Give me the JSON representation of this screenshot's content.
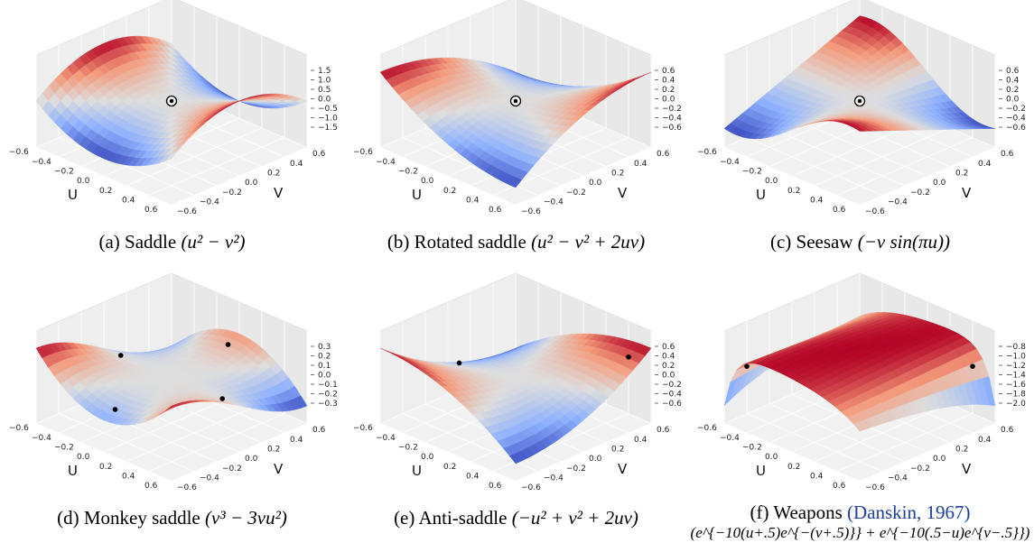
{
  "figure": {
    "panels": [
      {
        "id": "a",
        "caption_label": "(a) Saddle",
        "caption_formula": "(u² − v²)",
        "caption_cite": "",
        "caption_line2": "",
        "fn": "saddle",
        "critical_points": [
          [
            0,
            0
          ]
        ],
        "marker": "target",
        "zticks": [
          "1.5",
          "1.0",
          "0.5",
          "0.0",
          "−0.5",
          "−1.0",
          "−1.5"
        ]
      },
      {
        "id": "b",
        "caption_label": "(b) Rotated saddle",
        "caption_formula": "(u² − v² + 2uv)",
        "caption_cite": "",
        "caption_line2": "",
        "fn": "rotated",
        "critical_points": [
          [
            0,
            0
          ]
        ],
        "marker": "target",
        "zticks": [
          "0.6",
          "0.4",
          "0.2",
          "0.0",
          "−0.2",
          "−0.4",
          "−0.6"
        ]
      },
      {
        "id": "c",
        "caption_label": "(c) Seesaw",
        "caption_formula": "(−v sin(πu))",
        "caption_cite": "",
        "caption_line2": "",
        "fn": "seesaw",
        "critical_points": [
          [
            0,
            0
          ]
        ],
        "marker": "target",
        "zticks": [
          "0.6",
          "0.4",
          "0.2",
          "0.0",
          "−0.2",
          "−0.4",
          "−0.6"
        ]
      },
      {
        "id": "d",
        "caption_label": "(d) Monkey saddle",
        "caption_formula": "(v³ − 3vu²)",
        "caption_cite": "",
        "caption_line2": "",
        "fn": "monkey",
        "critical_points": [
          [
            -0.45,
            0
          ],
          [
            0.45,
            0
          ],
          [
            0,
            0.5
          ],
          [
            0,
            -0.5
          ]
        ],
        "marker": "dot",
        "zticks": [
          "0.3",
          "0.2",
          "0.1",
          "0.0",
          "−0.1",
          "−0.2",
          "−0.3"
        ]
      },
      {
        "id": "e",
        "caption_label": "(e) Anti-saddle",
        "caption_formula": "(−u² + v² + 2uv)",
        "caption_cite": "",
        "caption_line2": "",
        "fn": "anti",
        "critical_points": [
          [
            -0.5,
            0
          ],
          [
            0.5,
            0.5
          ]
        ],
        "marker": "dot",
        "zticks": [
          "0.6",
          "0.4",
          "0.2",
          "0.0",
          "−0.2",
          "−0.4",
          "−0.6"
        ]
      },
      {
        "id": "f",
        "caption_label": "(f) Weapons",
        "caption_formula": "",
        "caption_cite": "(Danskin, 1967)",
        "caption_line2": "(e^{−10(u+.5)e^{−(v+.5)}} + e^{−10(.5−u)e^{v−.5}})",
        "fn": "weapons",
        "critical_points": [
          [
            -0.5,
            -0.5
          ],
          [
            0.5,
            0.5
          ]
        ],
        "marker": "dot",
        "zticks": [
          "−0.8",
          "−1.0",
          "−1.2",
          "−1.4",
          "−1.6",
          "−1.8",
          "−2.0"
        ]
      }
    ],
    "axis_labels": {
      "u": "U",
      "v": "V"
    },
    "u_ticks": [
      "−0.6",
      "−0.4",
      "−0.2",
      "0.0",
      "0.2",
      "0.4",
      "0.6"
    ],
    "v_ticks": [
      "0.6",
      "0.4",
      "0.2",
      "0.0",
      "−0.2",
      "−0.4",
      "−0.6"
    ],
    "domain": [
      -0.6,
      0.6
    ],
    "colormap": "coolwarm",
    "colors": {
      "low": "#3b4cc0",
      "mid": "#dddddd",
      "high": "#b40426",
      "cite": "#1a3fa0"
    }
  },
  "chart_data": [
    {
      "type": "surface",
      "title": "(a) Saddle (u² − v²)",
      "xlabel": "U",
      "ylabel": "V",
      "xlim": [
        -0.6,
        0.6
      ],
      "ylim": [
        -0.6,
        0.6
      ],
      "zlim": [
        -1.5,
        1.5
      ],
      "grid": true
    },
    {
      "type": "surface",
      "title": "(b) Rotated saddle (u² − v² + 2uv)",
      "xlabel": "U",
      "ylabel": "V",
      "xlim": [
        -0.6,
        0.6
      ],
      "ylim": [
        -0.6,
        0.6
      ],
      "zlim": [
        -0.6,
        0.6
      ],
      "grid": true
    },
    {
      "type": "surface",
      "title": "(c) Seesaw (−v sin(πu))",
      "xlabel": "U",
      "ylabel": "V",
      "xlim": [
        -0.6,
        0.6
      ],
      "ylim": [
        -0.6,
        0.6
      ],
      "zlim": [
        -0.6,
        0.6
      ],
      "grid": true
    },
    {
      "type": "surface",
      "title": "(d) Monkey saddle (v³ − 3vu²)",
      "xlabel": "U",
      "ylabel": "V",
      "xlim": [
        -0.6,
        0.6
      ],
      "ylim": [
        -0.6,
        0.6
      ],
      "zlim": [
        -0.3,
        0.3
      ],
      "grid": true
    },
    {
      "type": "surface",
      "title": "(e) Anti-saddle (−u² + v² + 2uv)",
      "xlabel": "U",
      "ylabel": "V",
      "xlim": [
        -0.6,
        0.6
      ],
      "ylim": [
        -0.6,
        0.6
      ],
      "zlim": [
        -0.6,
        0.6
      ],
      "grid": true
    },
    {
      "type": "surface",
      "title": "(f) Weapons (Danskin, 1967)",
      "xlabel": "U",
      "ylabel": "V",
      "xlim": [
        -0.6,
        0.6
      ],
      "ylim": [
        -0.6,
        0.6
      ],
      "zlim": [
        -2.0,
        -0.8
      ],
      "grid": true
    }
  ]
}
